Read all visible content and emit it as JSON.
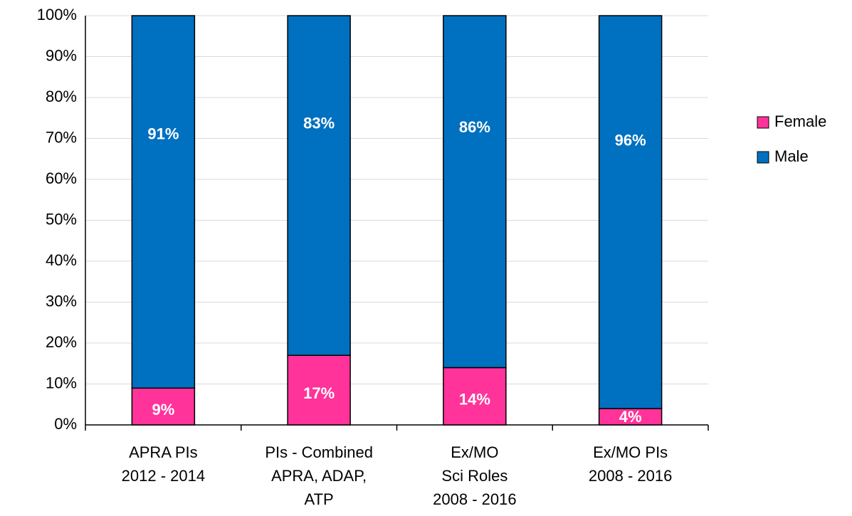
{
  "chart_data": {
    "type": "stacked_bar",
    "categories": [
      "APRA PIs\n2012 - 2014",
      "PIs - Combined\nAPRA, ADAP,\nATP",
      "Ex/MO\nSci Roles\n2008 - 2016",
      "Ex/MO PIs\n2008 - 2016"
    ],
    "series": [
      {
        "name": "Female",
        "color": "#ff3399",
        "values": [
          9,
          17,
          14,
          4
        ],
        "value_labels": [
          "9%",
          "17%",
          "14%",
          "4%"
        ]
      },
      {
        "name": "Male",
        "color": "#0070c0",
        "values": [
          91,
          83,
          86,
          96
        ],
        "value_labels": [
          "91%",
          "83%",
          "86%",
          "96%"
        ]
      }
    ],
    "ylim": [
      0,
      100
    ],
    "yticks": [
      {
        "value": 0,
        "label": "0%"
      },
      {
        "value": 10,
        "label": "10%"
      },
      {
        "value": 20,
        "label": "20%"
      },
      {
        "value": 30,
        "label": "30%"
      },
      {
        "value": 40,
        "label": "40%"
      },
      {
        "value": 50,
        "label": "50%"
      },
      {
        "value": 60,
        "label": "60%"
      },
      {
        "value": 70,
        "label": "70%"
      },
      {
        "value": 80,
        "label": "80%"
      },
      {
        "value": 90,
        "label": "90%"
      },
      {
        "value": 100,
        "label": "100%"
      }
    ],
    "grid": true,
    "legend": "right"
  }
}
